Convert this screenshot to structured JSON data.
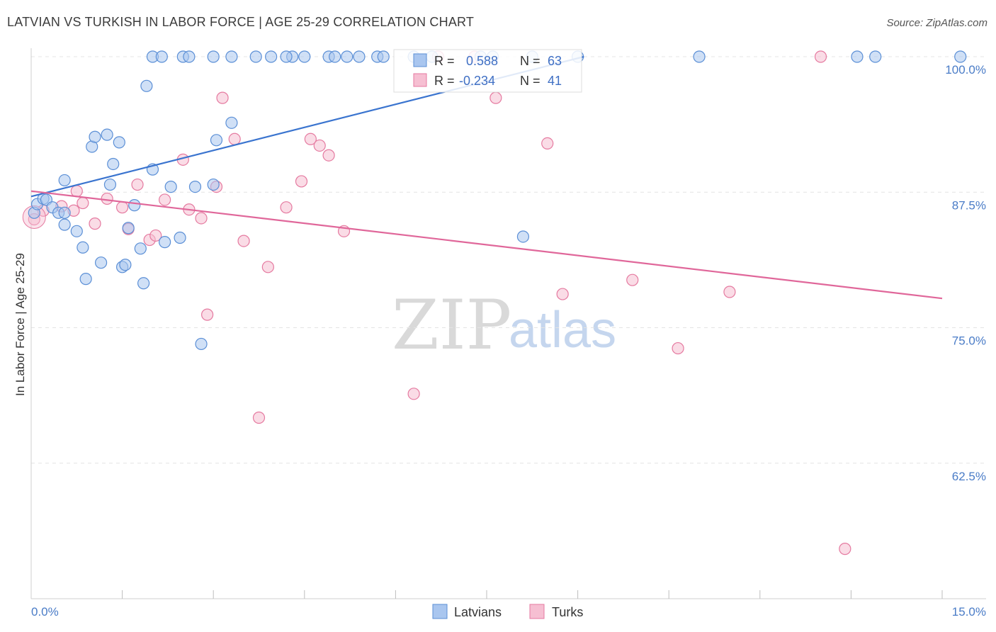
{
  "title": "LATVIAN VS TURKISH IN LABOR FORCE | AGE 25-29 CORRELATION CHART",
  "source": "Source: ZipAtlas.com",
  "watermark": {
    "zip": "ZIP",
    "atlas": "atlas"
  },
  "colors": {
    "latvians": "#5b8fd6",
    "latvians_fill": "#a9c6ef",
    "turks": "#e57aa0",
    "turks_fill": "#f6bfd2",
    "tick_label": "#4a7cc7"
  },
  "stats": {
    "latvians": {
      "r_label": "R =",
      "r_value": "0.588",
      "n_label": "N =",
      "n_value": "63"
    },
    "turks": {
      "r_label": "R =",
      "r_value": "-0.234",
      "n_label": "N =",
      "n_value": "41"
    }
  },
  "chart_data": {
    "type": "scatter",
    "title": "LATVIAN VS TURKISH IN LABOR FORCE | AGE 25-29 CORRELATION CHART",
    "xlabel": "",
    "ylabel": "In Labor Force | Age 25-29",
    "xlim": [
      0,
      15
    ],
    "ylim": [
      50,
      100
    ],
    "x_tick_labels": [
      "0.0%",
      "15.0%"
    ],
    "y_ticks": [
      62.5,
      75.0,
      87.5,
      100.0
    ],
    "y_tick_labels": [
      "62.5%",
      "75.0%",
      "87.5%",
      "100.0%"
    ],
    "grid": true,
    "legend_position": "bottom-center",
    "series": [
      {
        "name": "Latvians",
        "trend": {
          "x": [
            0.0,
            9.1
          ],
          "y": [
            87.1,
            100.0
          ]
        },
        "points": [
          [
            0.05,
            85.6
          ],
          [
            0.1,
            86.4
          ],
          [
            0.2,
            86.9
          ],
          [
            0.25,
            86.8
          ],
          [
            0.35,
            86.1
          ],
          [
            0.45,
            85.6
          ],
          [
            0.55,
            85.6
          ],
          [
            0.55,
            88.6
          ],
          [
            0.55,
            84.5
          ],
          [
            0.75,
            83.9
          ],
          [
            0.85,
            82.4
          ],
          [
            0.9,
            79.5
          ],
          [
            1.0,
            91.7
          ],
          [
            1.05,
            92.6
          ],
          [
            1.15,
            81.0
          ],
          [
            1.25,
            92.8
          ],
          [
            1.3,
            88.2
          ],
          [
            1.35,
            90.1
          ],
          [
            1.45,
            92.1
          ],
          [
            1.5,
            80.6
          ],
          [
            1.55,
            80.8
          ],
          [
            1.6,
            84.2
          ],
          [
            1.7,
            86.3
          ],
          [
            1.8,
            82.3
          ],
          [
            1.85,
            79.1
          ],
          [
            1.9,
            97.3
          ],
          [
            2.0,
            89.6
          ],
          [
            2.2,
            82.9
          ],
          [
            2.3,
            88.0
          ],
          [
            2.45,
            83.3
          ],
          [
            2.7,
            88.0
          ],
          [
            2.8,
            73.5
          ],
          [
            3.0,
            88.2
          ],
          [
            3.05,
            92.3
          ],
          [
            3.3,
            93.9
          ],
          [
            2.0,
            100.0
          ],
          [
            2.15,
            100.0
          ],
          [
            2.5,
            100.0
          ],
          [
            2.6,
            100.0
          ],
          [
            3.0,
            100.0
          ],
          [
            3.3,
            100.0
          ],
          [
            3.7,
            100.0
          ],
          [
            3.95,
            100.0
          ],
          [
            4.3,
            100.0
          ],
          [
            4.5,
            100.0
          ],
          [
            4.9,
            100.0
          ],
          [
            5.0,
            100.0
          ],
          [
            5.2,
            100.0
          ],
          [
            5.7,
            100.0
          ],
          [
            5.8,
            100.0
          ],
          [
            6.3,
            100.0
          ],
          [
            6.6,
            100.0
          ],
          [
            7.4,
            100.0
          ],
          [
            7.6,
            100.0
          ],
          [
            8.25,
            100.0
          ],
          [
            9.0,
            100.0
          ],
          [
            11.0,
            100.0
          ],
          [
            13.6,
            100.0
          ],
          [
            13.9,
            100.0
          ],
          [
            15.3,
            100.0
          ],
          [
            4.2,
            100.0
          ],
          [
            5.4,
            100.0
          ],
          [
            8.1,
            83.4
          ]
        ]
      },
      {
        "name": "Turks",
        "trend": {
          "x": [
            0.0,
            15.0
          ],
          "y": [
            87.6,
            77.7
          ]
        },
        "points": [
          [
            0.05,
            85.0
          ],
          [
            0.2,
            85.8
          ],
          [
            0.5,
            86.2
          ],
          [
            0.7,
            85.8
          ],
          [
            0.75,
            87.6
          ],
          [
            0.85,
            86.5
          ],
          [
            1.05,
            84.6
          ],
          [
            1.25,
            86.9
          ],
          [
            1.5,
            86.1
          ],
          [
            1.6,
            84.1
          ],
          [
            1.75,
            88.2
          ],
          [
            1.95,
            83.1
          ],
          [
            2.05,
            83.5
          ],
          [
            2.2,
            86.8
          ],
          [
            2.5,
            90.5
          ],
          [
            2.6,
            85.9
          ],
          [
            2.8,
            85.1
          ],
          [
            2.9,
            76.2
          ],
          [
            3.05,
            88.0
          ],
          [
            3.15,
            96.2
          ],
          [
            3.35,
            92.4
          ],
          [
            3.5,
            83.0
          ],
          [
            3.75,
            66.7
          ],
          [
            3.9,
            80.6
          ],
          [
            4.2,
            86.1
          ],
          [
            4.45,
            88.5
          ],
          [
            4.6,
            92.4
          ],
          [
            4.75,
            91.8
          ],
          [
            4.9,
            90.9
          ],
          [
            5.15,
            83.9
          ],
          [
            6.3,
            68.9
          ],
          [
            6.7,
            100.0
          ],
          [
            7.3,
            100.0
          ],
          [
            7.65,
            96.2
          ],
          [
            8.75,
            78.1
          ],
          [
            9.9,
            79.4
          ],
          [
            10.65,
            73.1
          ],
          [
            11.5,
            78.3
          ],
          [
            13.0,
            100.0
          ],
          [
            13.4,
            54.6
          ],
          [
            8.5,
            92.0
          ]
        ]
      }
    ]
  },
  "legend": {
    "latvians": "Latvians",
    "turks": "Turks"
  }
}
